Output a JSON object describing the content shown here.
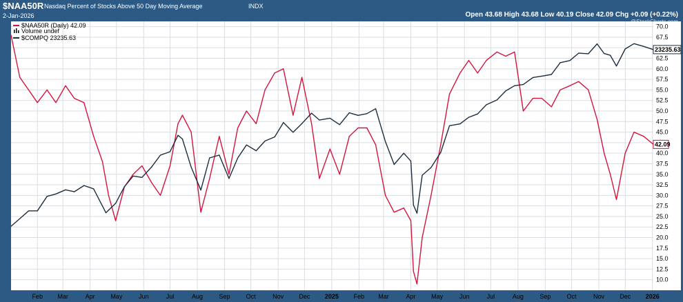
{
  "header": {
    "symbol": "$NAA50R",
    "description": "Nasdaq Percent of Stocks Above 50 Day Moving Average",
    "exchange": "INDX",
    "date": "2-Jan-2026",
    "ohlc": "Open 43.68  High 43.68  Low 40.19  Close 42.09  Chg +0.09 (+0.22%)",
    "watermark": "@StockCharts.com"
  },
  "legend": {
    "series1": "$NAA50R (Daily) 42.09",
    "volume": "Volume undef",
    "series2": "$COMPQ 23235.63"
  },
  "colors": {
    "naa50r": "#d4143c",
    "compq": "#1c2d3e",
    "frame": "#2d5a84",
    "grid": "#d9dde2",
    "plot_bg": "#ffffff"
  },
  "chart_data": {
    "type": "line",
    "x_range": [
      "2024-01-02",
      "2026-01-02"
    ],
    "ylim": [
      7.5,
      71.25
    ],
    "y_ticks": [
      "70.0",
      "67.5",
      "65.0",
      "62.5",
      "60.0",
      "57.5",
      "55.0",
      "52.5",
      "50.0",
      "47.5",
      "45.0",
      "42.5",
      "40.0",
      "37.5",
      "35.0",
      "32.5",
      "30.0",
      "27.5",
      "25.0",
      "22.5",
      "20.0",
      "17.5",
      "15.0",
      "12.5",
      "10.0"
    ],
    "x_ticks": [
      "Feb",
      "Mar",
      "Apr",
      "May",
      "Jun",
      "Jul",
      "Aug",
      "Sep",
      "Oct",
      "Nov",
      "Dec",
      "2025",
      "Feb",
      "Mar",
      "Apr",
      "May",
      "Jun",
      "Jul",
      "Aug",
      "Sep",
      "Oct",
      "Nov",
      "Dec",
      "2026"
    ],
    "last_labels": {
      "compq": "23235.63",
      "naa50r": "42.09"
    },
    "series": [
      {
        "name": "$NAA50R (Daily) 42.09",
        "color": "#d4143c",
        "points": [
          [
            "2024-01-02",
            68
          ],
          [
            "2024-01-12",
            58
          ],
          [
            "2024-01-22",
            55
          ],
          [
            "2024-02-01",
            52
          ],
          [
            "2024-02-12",
            55
          ],
          [
            "2024-02-22",
            52
          ],
          [
            "2024-03-04",
            56
          ],
          [
            "2024-03-14",
            53
          ],
          [
            "2024-03-25",
            52
          ],
          [
            "2024-04-05",
            44
          ],
          [
            "2024-04-15",
            38
          ],
          [
            "2024-04-22",
            30
          ],
          [
            "2024-04-30",
            24
          ],
          [
            "2024-05-10",
            32
          ],
          [
            "2024-05-20",
            35
          ],
          [
            "2024-05-30",
            37
          ],
          [
            "2024-06-10",
            33
          ],
          [
            "2024-06-20",
            30
          ],
          [
            "2024-07-01",
            37
          ],
          [
            "2024-07-10",
            47
          ],
          [
            "2024-07-15",
            49
          ],
          [
            "2024-07-25",
            45
          ],
          [
            "2024-08-05",
            26
          ],
          [
            "2024-08-15",
            34
          ],
          [
            "2024-08-26",
            44
          ],
          [
            "2024-09-06",
            35
          ],
          [
            "2024-09-16",
            46
          ],
          [
            "2024-09-26",
            50
          ],
          [
            "2024-10-07",
            47
          ],
          [
            "2024-10-17",
            55
          ],
          [
            "2024-10-28",
            59
          ],
          [
            "2024-11-07",
            60
          ],
          [
            "2024-11-18",
            49
          ],
          [
            "2024-11-28",
            58
          ],
          [
            "2024-12-09",
            47
          ],
          [
            "2024-12-18",
            34
          ],
          [
            "2024-12-30",
            41
          ],
          [
            "2025-01-10",
            35
          ],
          [
            "2025-01-21",
            44
          ],
          [
            "2025-01-31",
            46
          ],
          [
            "2025-02-10",
            46
          ],
          [
            "2025-02-20",
            42
          ],
          [
            "2025-03-03",
            30
          ],
          [
            "2025-03-13",
            26
          ],
          [
            "2025-03-24",
            27
          ],
          [
            "2025-04-01",
            24
          ],
          [
            "2025-04-04",
            12
          ],
          [
            "2025-04-08",
            9
          ],
          [
            "2025-04-14",
            20
          ],
          [
            "2025-04-24",
            30
          ],
          [
            "2025-05-05",
            42
          ],
          [
            "2025-05-15",
            54
          ],
          [
            "2025-05-27",
            59
          ],
          [
            "2025-06-06",
            62
          ],
          [
            "2025-06-16",
            59
          ],
          [
            "2025-06-26",
            62
          ],
          [
            "2025-07-08",
            64
          ],
          [
            "2025-07-18",
            63
          ],
          [
            "2025-07-28",
            64
          ],
          [
            "2025-08-07",
            50
          ],
          [
            "2025-08-18",
            53
          ],
          [
            "2025-08-28",
            53
          ],
          [
            "2025-09-08",
            51
          ],
          [
            "2025-09-18",
            55
          ],
          [
            "2025-09-29",
            56
          ],
          [
            "2025-10-09",
            57
          ],
          [
            "2025-10-20",
            55
          ],
          [
            "2025-10-30",
            48
          ],
          [
            "2025-11-07",
            40
          ],
          [
            "2025-11-14",
            35
          ],
          [
            "2025-11-21",
            29
          ],
          [
            "2025-12-01",
            40
          ],
          [
            "2025-12-11",
            45
          ],
          [
            "2025-12-22",
            44
          ],
          [
            "2026-01-02",
            42.09
          ]
        ]
      },
      {
        "name": "$COMPQ 23235.63",
        "color": "#1c2d3e",
        "points": [
          [
            "2024-01-02",
            14765
          ],
          [
            "2024-01-12",
            15055
          ],
          [
            "2024-01-22",
            15360
          ],
          [
            "2024-02-01",
            15360
          ],
          [
            "2024-02-12",
            15940
          ],
          [
            "2024-02-22",
            16040
          ],
          [
            "2024-03-04",
            16210
          ],
          [
            "2024-03-14",
            16130
          ],
          [
            "2024-03-25",
            16390
          ],
          [
            "2024-04-05",
            16250
          ],
          [
            "2024-04-19",
            15282
          ],
          [
            "2024-04-30",
            15658
          ],
          [
            "2024-05-10",
            16340
          ],
          [
            "2024-05-20",
            16794
          ],
          [
            "2024-05-30",
            16737
          ],
          [
            "2024-06-10",
            17192
          ],
          [
            "2024-06-20",
            17721
          ],
          [
            "2024-07-01",
            17879
          ],
          [
            "2024-07-10",
            18647
          ],
          [
            "2024-07-15",
            18472
          ],
          [
            "2024-07-25",
            17182
          ],
          [
            "2024-08-05",
            16200
          ],
          [
            "2024-08-15",
            17595
          ],
          [
            "2024-08-26",
            17725
          ],
          [
            "2024-09-06",
            16691
          ],
          [
            "2024-09-16",
            17593
          ],
          [
            "2024-09-26",
            18190
          ],
          [
            "2024-10-07",
            17923
          ],
          [
            "2024-10-17",
            18374
          ],
          [
            "2024-10-28",
            18568
          ],
          [
            "2024-11-07",
            19269
          ],
          [
            "2024-11-18",
            18791
          ],
          [
            "2024-11-28",
            19218
          ],
          [
            "2024-12-09",
            19737
          ],
          [
            "2024-12-18",
            19393
          ],
          [
            "2024-12-30",
            19486
          ],
          [
            "2025-01-10",
            19162
          ],
          [
            "2025-01-21",
            19757
          ],
          [
            "2025-01-31",
            19627
          ],
          [
            "2025-02-10",
            19714
          ],
          [
            "2025-02-20",
            19962
          ],
          [
            "2025-03-03",
            18350
          ],
          [
            "2025-03-13",
            17303
          ],
          [
            "2025-03-24",
            17808
          ],
          [
            "2025-04-01",
            17449
          ],
          [
            "2025-04-04",
            15588
          ],
          [
            "2025-04-08",
            15267
          ],
          [
            "2025-04-14",
            16831
          ],
          [
            "2025-04-24",
            17166
          ],
          [
            "2025-05-05",
            17844
          ],
          [
            "2025-05-15",
            19112
          ],
          [
            "2025-05-27",
            19199
          ],
          [
            "2025-06-06",
            19530
          ],
          [
            "2025-06-16",
            19701
          ],
          [
            "2025-06-26",
            20167
          ],
          [
            "2025-07-08",
            20418
          ],
          [
            "2025-07-18",
            20895
          ],
          [
            "2025-07-28",
            21178
          ],
          [
            "2025-08-07",
            21242
          ],
          [
            "2025-08-18",
            21629
          ],
          [
            "2025-08-28",
            21705
          ],
          [
            "2025-09-08",
            21799
          ],
          [
            "2025-09-18",
            22470
          ],
          [
            "2025-09-29",
            22591
          ],
          [
            "2025-10-09",
            23024
          ],
          [
            "2025-10-20",
            22990
          ],
          [
            "2025-10-30",
            23581
          ],
          [
            "2025-11-07",
            23004
          ],
          [
            "2025-11-14",
            22900
          ],
          [
            "2025-11-21",
            22273
          ],
          [
            "2025-12-01",
            23275
          ],
          [
            "2025-12-11",
            23593
          ],
          [
            "2025-12-22",
            23428
          ],
          [
            "2026-01-02",
            23235.63
          ]
        ]
      }
    ]
  }
}
